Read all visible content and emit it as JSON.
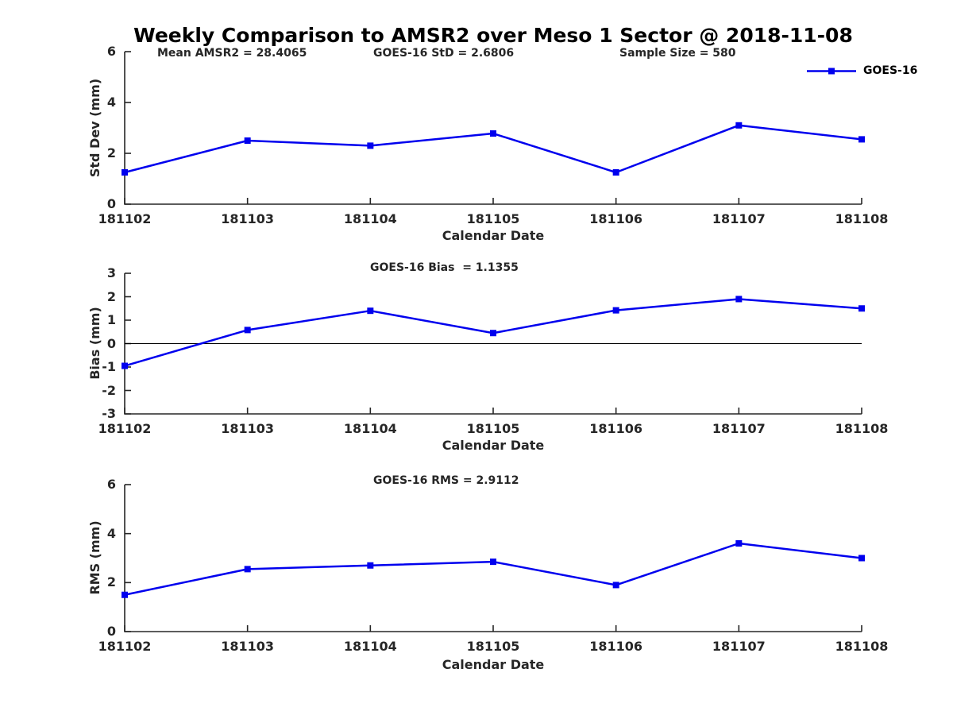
{
  "figure": {
    "title": "Weekly Comparison to AMSR2 over Meso 1 Sector @ 2018-11-08",
    "colors": {
      "line": "#0000ee",
      "axis": "#262626",
      "text": "#262626",
      "zero_line": "#000000",
      "background": "#ffffff"
    }
  },
  "chart_data": [
    {
      "type": "line",
      "panel": "std-dev",
      "annotations": [
        "Mean AMSR2 = 28.4065",
        "GOES-16 StD = 2.6806",
        "Sample Size = 580"
      ],
      "categories": [
        "181102",
        "181103",
        "181104",
        "181105",
        "181106",
        "181107",
        "181108"
      ],
      "series": [
        {
          "name": "GOES-16",
          "values": [
            1.25,
            2.5,
            2.3,
            2.78,
            1.25,
            3.1,
            2.55
          ]
        }
      ],
      "xlabel": "Calendar Date",
      "ylabel": "Std Dev (mm)",
      "ylim": [
        0,
        6
      ],
      "yticks": [
        0,
        2,
        4,
        6
      ],
      "marker": "square",
      "legend_position": "top-right",
      "grid": false
    },
    {
      "type": "line",
      "panel": "bias",
      "title": "GOES-16 Bias  = 1.1355",
      "categories": [
        "181102",
        "181103",
        "181104",
        "181105",
        "181106",
        "181107",
        "181108"
      ],
      "series": [
        {
          "name": "GOES-16",
          "values": [
            -0.95,
            0.58,
            1.4,
            0.45,
            1.42,
            1.9,
            1.5
          ]
        }
      ],
      "xlabel": "Calendar Date",
      "ylabel": "Bias (mm)",
      "ylim": [
        -3,
        3
      ],
      "yticks": [
        -3,
        -2,
        -1,
        0,
        1,
        2,
        3
      ],
      "zero_line": true,
      "marker": "square",
      "grid": false
    },
    {
      "type": "line",
      "panel": "rms",
      "title": "GOES-16 RMS = 2.9112",
      "categories": [
        "181102",
        "181103",
        "181104",
        "181105",
        "181106",
        "181107",
        "181108"
      ],
      "series": [
        {
          "name": "GOES-16",
          "values": [
            1.5,
            2.55,
            2.7,
            2.85,
            1.9,
            3.6,
            3.0
          ]
        }
      ],
      "xlabel": "Calendar Date",
      "ylabel": "RMS (mm)",
      "ylim": [
        0,
        6
      ],
      "yticks": [
        0,
        2,
        4,
        6
      ],
      "marker": "square",
      "grid": false
    }
  ]
}
